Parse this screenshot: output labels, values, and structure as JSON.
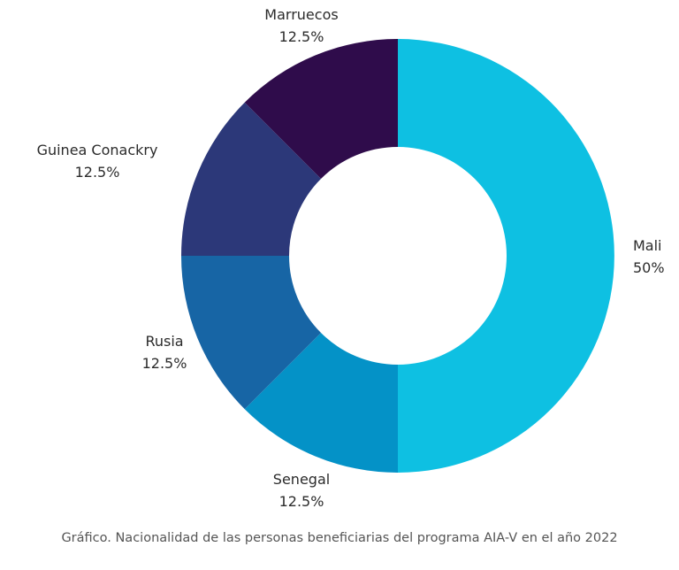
{
  "chart_data": {
    "type": "pie",
    "donut": true,
    "slices": [
      {
        "label": "Mali",
        "value": 50,
        "value_label": "50%",
        "color": "#0ec0e2"
      },
      {
        "label": "Senegal",
        "value": 12.5,
        "value_label": "12.5%",
        "color": "#0492c7"
      },
      {
        "label": "Rusia",
        "value": 12.5,
        "value_label": "12.5%",
        "color": "#1765a5"
      },
      {
        "label": "Guinea Conackry",
        "value": 12.5,
        "value_label": "12.5%",
        "color": "#2c3879"
      },
      {
        "label": "Marruecos",
        "value": 12.5,
        "value_label": "12.5%",
        "color": "#2f0c4b"
      }
    ],
    "caption": "Gráfico. Nacionalidad de las personas beneficiarias del programa AIA-V en el año 2022"
  }
}
